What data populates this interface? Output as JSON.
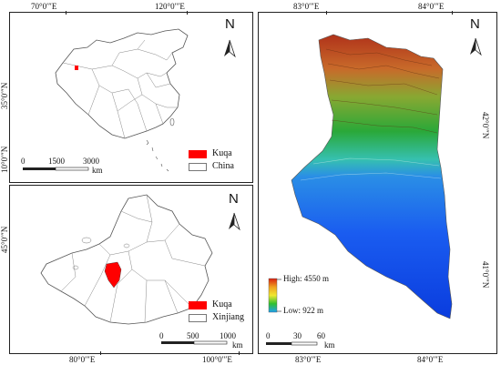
{
  "panels": {
    "china": {
      "top_ticks": [
        "70°0′″E",
        "120°0′″E"
      ],
      "left_ticks": [
        "35°0′″N",
        "10°0′″N"
      ],
      "north_label": "N",
      "scale_labels": [
        "0",
        "1500",
        "3000"
      ],
      "scale_unit": "km",
      "legend": [
        {
          "label": "Kuqa",
          "color": "#ff0000"
        },
        {
          "label": "China",
          "color": "#ffffff"
        }
      ]
    },
    "xinjiang": {
      "left_ticks": [
        "45°0′″N"
      ],
      "bottom_ticks": [
        "80°0′″E",
        "100°0′″E"
      ],
      "north_label": "N",
      "scale_labels": [
        "0",
        "500",
        "1000"
      ],
      "scale_unit": "km",
      "legend": [
        {
          "label": "Kuqa",
          "color": "#ff0000"
        },
        {
          "label": "Xinjiang",
          "color": "#ffffff"
        }
      ]
    },
    "kuqa": {
      "top_ticks": [
        "83°0′″E",
        "84°0′″E"
      ],
      "bottom_ticks": [
        "83°0′″E",
        "84°0′″E"
      ],
      "right_ticks": [
        "42°0′″N",
        "41°0′″N"
      ],
      "north_label": "N",
      "elevation_high": "High: 4550 m",
      "elevation_low": "Low: 922 m",
      "scale_labels": [
        "0",
        "30",
        "60"
      ],
      "scale_unit": "km"
    }
  },
  "colors": {
    "highlight": "#ff0000",
    "dem_high": "#cc2200",
    "dem_mid": "#22aa22",
    "dem_low": "#1144ee"
  }
}
